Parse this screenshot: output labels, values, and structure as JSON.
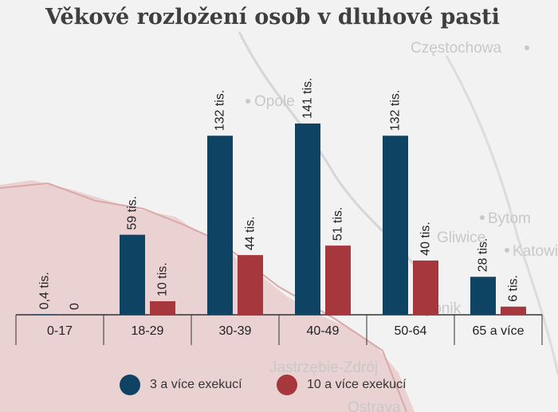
{
  "map_labels": [
    "Częstochowa",
    "Opole",
    "Bytom",
    "Gliwice",
    "Katowice",
    "Rybnik",
    "Jastrzębie-Zdrój",
    "Ostrava"
  ],
  "chart_data": {
    "type": "bar",
    "title": "Věkové rozložení osob v dluhové pasti",
    "categories": [
      "0-17",
      "18-29",
      "30-39",
      "40-49",
      "50-64",
      "65 a více"
    ],
    "series": [
      {
        "name": "3 a více exekucí",
        "color": "#0e4364",
        "values": [
          0.4,
          59,
          132,
          141,
          132,
          28
        ],
        "labels": [
          "0,4 tis.",
          "59 tis.",
          "132 tis.",
          "141 tis.",
          "132 tis.",
          "28 tis."
        ]
      },
      {
        "name": "10 a více exekucí",
        "color": "#a5373d",
        "values": [
          0,
          10,
          44,
          51,
          40,
          6
        ],
        "labels": [
          "0",
          "10 tis.",
          "44 tis.",
          "51 tis.",
          "40 tis.",
          "6 tis."
        ]
      }
    ],
    "ylim": [
      0,
      141
    ],
    "grid": false,
    "legend_position": "bottom"
  }
}
